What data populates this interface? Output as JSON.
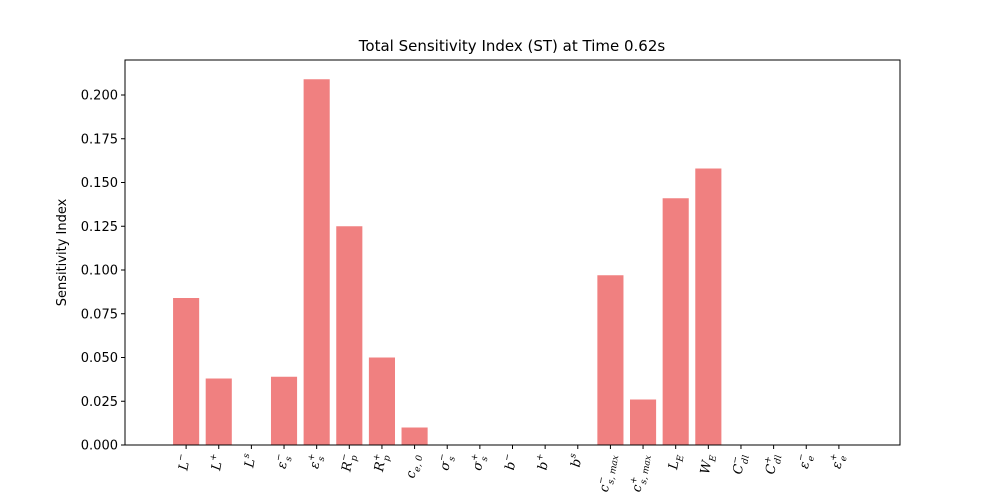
{
  "chart_data": {
    "type": "bar",
    "title": "Total Sensitivity Index (ST) at Time 0.62s",
    "xlabel": "",
    "ylabel": "Sensitivity Index",
    "ylim": [
      0,
      0.22
    ],
    "yticks": [
      "0.000",
      "0.025",
      "0.050",
      "0.075",
      "0.100",
      "0.125",
      "0.150",
      "0.175",
      "0.200"
    ],
    "bar_color": "#f08080",
    "grid": false,
    "categories": [
      {
        "base": "L",
        "sub": "",
        "sup": "−"
      },
      {
        "base": "L",
        "sub": "",
        "sup": "+"
      },
      {
        "base": "L",
        "sub": "",
        "sup": "s"
      },
      {
        "base": "ε",
        "sub": "s",
        "sup": "−"
      },
      {
        "base": "ε",
        "sub": "s",
        "sup": "+"
      },
      {
        "base": "R",
        "sub": "p",
        "sup": "−"
      },
      {
        "base": "R",
        "sub": "p",
        "sup": "+"
      },
      {
        "base": "c",
        "sub": "e, 0",
        "sup": ""
      },
      {
        "base": "σ",
        "sub": "s",
        "sup": "−"
      },
      {
        "base": "σ",
        "sub": "s",
        "sup": "+"
      },
      {
        "base": "b",
        "sub": "",
        "sup": "−"
      },
      {
        "base": "b",
        "sub": "",
        "sup": "+"
      },
      {
        "base": "b",
        "sub": "",
        "sup": "s"
      },
      {
        "base": "c",
        "sub": "s, max",
        "sup": "−"
      },
      {
        "base": "c",
        "sub": "s, max",
        "sup": "+"
      },
      {
        "base": "L",
        "sub": "E",
        "sup": ""
      },
      {
        "base": "W",
        "sub": "E",
        "sup": ""
      },
      {
        "base": "C",
        "sub": "dl",
        "sup": "−"
      },
      {
        "base": "C",
        "sub": "dl",
        "sup": "+"
      },
      {
        "base": "ε",
        "sub": "e",
        "sup": "−"
      },
      {
        "base": "ε",
        "sub": "e",
        "sup": "+"
      }
    ],
    "values": [
      0.084,
      0.038,
      0.0,
      0.039,
      0.209,
      0.125,
      0.05,
      0.01,
      0.0,
      0.0,
      0.0,
      0.0,
      0.0,
      0.097,
      0.026,
      0.141,
      0.158,
      0.0,
      0.0,
      0.0,
      0.0
    ]
  }
}
